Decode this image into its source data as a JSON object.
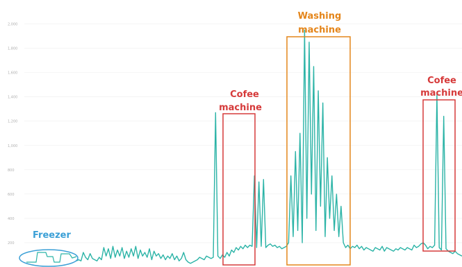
{
  "chart_data": {
    "type": "line",
    "title": "",
    "xlabel": "",
    "ylabel": "",
    "ylim": [
      0,
      2100
    ],
    "y_ticks": [
      "200",
      "400",
      "600",
      "800",
      "1,000",
      "1,200",
      "1,400",
      "1,600",
      "1,800",
      "2,000"
    ],
    "grid": true,
    "series_color": "#2ab3a6",
    "x_range": [
      0,
      1000
    ],
    "y": [
      50,
      60,
      50,
      120,
      80,
      60,
      110,
      70,
      60,
      50,
      80,
      60,
      160,
      90,
      150,
      70,
      170,
      80,
      140,
      90,
      160,
      70,
      130,
      80,
      150,
      90,
      170,
      70,
      140,
      90,
      120,
      80,
      150,
      60,
      130,
      90,
      110,
      70,
      100,
      60,
      90,
      70,
      110,
      60,
      90,
      50,
      70,
      120,
      60,
      40,
      30,
      40,
      50,
      60,
      80,
      70,
      60,
      90,
      80,
      70,
      80,
      1270,
      90,
      70,
      100,
      80,
      120,
      90,
      140,
      120,
      160,
      140,
      170,
      150,
      180,
      160,
      180,
      170,
      750,
      160,
      700,
      170,
      720,
      160,
      180,
      190,
      170,
      180,
      160,
      170,
      150,
      160,
      170,
      200,
      750,
      250,
      950,
      300,
      1100,
      200,
      1950,
      400,
      1850,
      600,
      1650,
      300,
      1450,
      500,
      1350,
      250,
      900,
      400,
      750,
      300,
      600,
      250,
      500,
      200,
      160,
      180,
      150,
      170,
      160,
      180,
      150,
      170,
      140,
      160,
      150,
      140,
      130,
      160,
      150,
      140,
      170,
      130,
      160,
      150,
      140,
      130,
      150,
      140,
      160,
      150,
      140,
      160,
      150,
      140,
      180,
      160,
      170,
      190,
      200,
      180,
      150,
      170,
      160,
      180,
      1420,
      160,
      140,
      1240,
      150,
      130,
      120,
      110,
      130,
      110,
      100,
      90
    ],
    "annotations": [
      {
        "label": "Freezer",
        "color": "#3a9fd6",
        "shape": "ellipse",
        "x0": 5,
        "x1": 125
      },
      {
        "label": "Cofee machine",
        "color": "#d63a3a",
        "shape": "rect",
        "x0": 486,
        "x1": 552
      },
      {
        "label": "Washing machine",
        "color": "#e4851a",
        "shape": "rect",
        "x0": 620,
        "x1": 758
      },
      {
        "label": "Cofee machine",
        "color": "#d63a3a",
        "shape": "rect",
        "x0": 915,
        "x1": 985
      }
    ]
  }
}
